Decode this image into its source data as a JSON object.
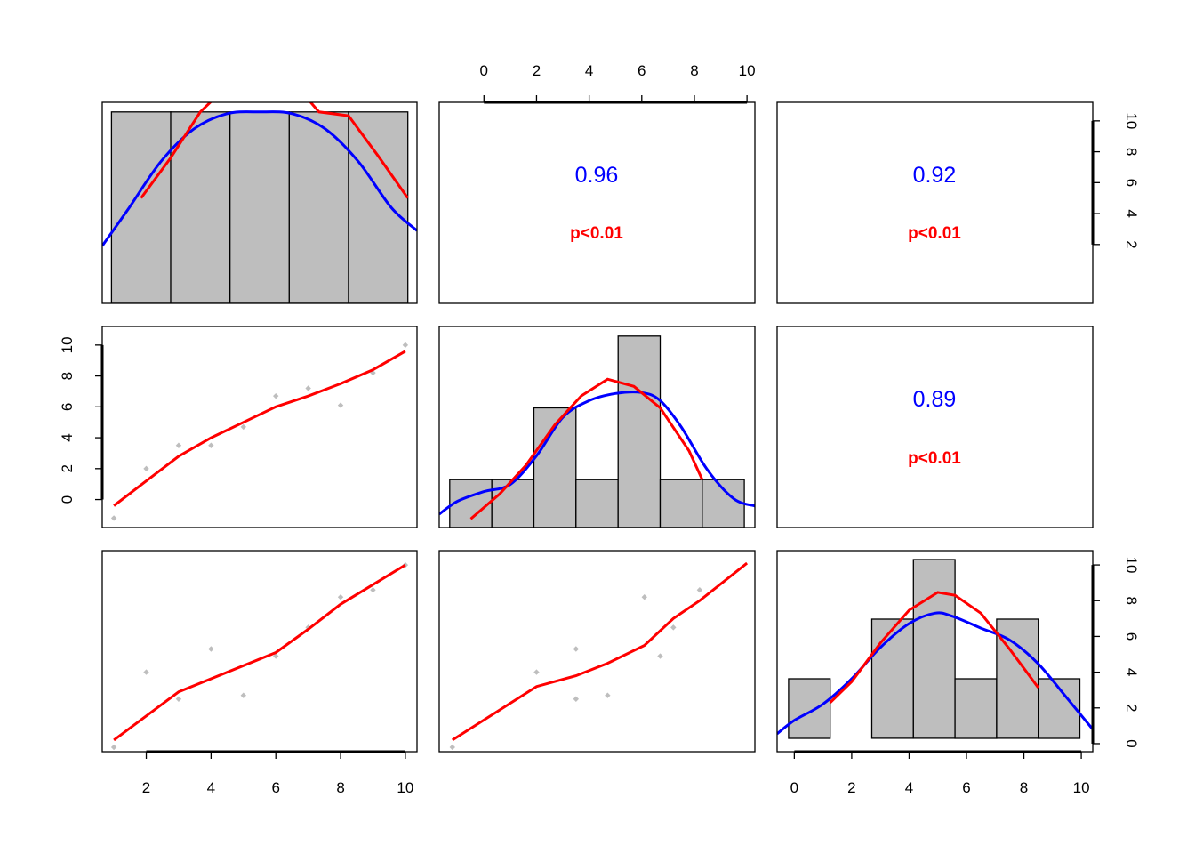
{
  "chart_data": {
    "type": "scatter-matrix",
    "title": "",
    "variables": 3,
    "colors": {
      "density": "#0000ff",
      "fit": "#ff0000",
      "points": "#bebebe",
      "bars": "#bebebe"
    },
    "diagonal": [
      {
        "type": "bar",
        "breaks": [
          1,
          2.8,
          4.6,
          6.4,
          8.2,
          10
        ],
        "counts": [
          1,
          1,
          1,
          1,
          1
        ],
        "xlim": [
          0.72,
          10.28
        ],
        "ylim": [
          0,
          1.05
        ],
        "density_x": [
          0.72,
          1.5,
          2.5,
          3.5,
          4.5,
          5.5,
          6.5,
          7.5,
          8.5,
          9.5,
          10.28
        ],
        "density_y": [
          0.3,
          0.49,
          0.74,
          0.91,
          0.99,
          1.0,
          0.99,
          0.91,
          0.74,
          0.5,
          0.38
        ],
        "fit_x": [
          1.9,
          2.8,
          3.7,
          4.6,
          5.5,
          6.4,
          7.3,
          8.2,
          9.1,
          10.0
        ],
        "fit_y": [
          0.55,
          0.76,
          1.0,
          1.15,
          1.23,
          1.18,
          1.0,
          0.98,
          0.77,
          0.55
        ]
      },
      {
        "type": "bar",
        "breaks": [
          -1.3,
          0.3,
          1.9,
          3.5,
          5.1,
          6.7,
          8.3,
          9.9
        ],
        "counts": [
          1,
          1,
          2.5,
          1,
          4,
          1,
          1
        ],
        "xlim": [
          -1.7,
          10.3
        ],
        "ylim": [
          0,
          4.2
        ],
        "density_x": [
          -1.7,
          -1.0,
          0.0,
          1.0,
          2.0,
          3.0,
          4.0,
          5.0,
          6.0,
          6.7,
          7.5,
          8.5,
          9.5,
          10.3
        ],
        "density_y": [
          0.28,
          0.55,
          0.75,
          0.9,
          1.5,
          2.3,
          2.65,
          2.8,
          2.82,
          2.65,
          2.1,
          1.2,
          0.6,
          0.45
        ],
        "fit_x": [
          -0.5,
          0.6,
          1.6,
          2.7,
          3.7,
          4.7,
          5.7,
          6.7,
          7.8,
          8.3
        ],
        "fit_y": [
          0.18,
          0.7,
          1.3,
          2.15,
          2.75,
          3.1,
          2.95,
          2.5,
          1.6,
          1.0
        ]
      },
      {
        "type": "bar",
        "breaks": [
          -0.2,
          1.25,
          2.7,
          4.15,
          5.6,
          7.05,
          8.5,
          9.95
        ],
        "counts": [
          2,
          0,
          4,
          6,
          2,
          4,
          2
        ],
        "xlim": [
          -0.6,
          10.4
        ],
        "ylim": [
          -0.45,
          6.3
        ],
        "density_x": [
          -0.6,
          0.0,
          1.0,
          2.0,
          3.0,
          4.0,
          4.9,
          5.5,
          6.5,
          7.5,
          8.5,
          9.5,
          10.4
        ],
        "density_y": [
          0.15,
          0.6,
          1.15,
          2.0,
          3.05,
          3.85,
          4.2,
          4.1,
          3.7,
          3.3,
          2.5,
          1.35,
          0.3
        ],
        "fit_x": [
          1.25,
          2.0,
          3.0,
          4.0,
          5.0,
          5.6,
          6.5,
          7.5,
          8.5
        ],
        "fit_y": [
          1.2,
          1.9,
          3.2,
          4.3,
          4.9,
          4.8,
          4.2,
          3.0,
          1.7
        ]
      }
    ],
    "correlations": [
      {
        "pair": [
          1,
          2
        ],
        "r": "0.96",
        "p": "p<0.01"
      },
      {
        "pair": [
          1,
          3
        ],
        "r": "0.92",
        "p": "p<0.01"
      },
      {
        "pair": [
          2,
          3
        ],
        "r": "0.89",
        "p": "p<0.01"
      }
    ],
    "scatter": [
      {
        "pair": [
          2,
          1
        ],
        "xlim": [
          0.64,
          10.36
        ],
        "ylim": [
          -1.81,
          11.2
        ],
        "points_x": [
          1,
          2,
          3,
          4,
          5,
          6,
          7,
          8,
          9,
          10
        ],
        "points_y": [
          -1.2,
          2.0,
          3.5,
          3.5,
          4.7,
          6.7,
          7.2,
          6.1,
          8.2,
          10.0
        ],
        "fit_x": [
          1,
          2,
          3,
          4,
          5,
          6,
          7,
          8,
          9,
          10
        ],
        "fit_y": [
          -0.4,
          1.2,
          2.8,
          4.0,
          5.0,
          6.0,
          6.7,
          7.5,
          8.4,
          9.6
        ]
      },
      {
        "pair": [
          3,
          1
        ],
        "xlim": [
          0.64,
          10.36
        ],
        "ylim": [
          -0.45,
          10.8
        ],
        "points_x": [
          1,
          2,
          3,
          4,
          5,
          6,
          7,
          8,
          9,
          10
        ],
        "points_y": [
          -0.2,
          4.0,
          2.5,
          5.3,
          2.7,
          4.9,
          6.5,
          8.2,
          8.6,
          10.0
        ],
        "fit_x": [
          1,
          3,
          6,
          7,
          8,
          9,
          10
        ],
        "fit_y": [
          0.2,
          2.9,
          5.1,
          6.4,
          7.8,
          8.9,
          10.0
        ]
      },
      {
        "pair": [
          3,
          2
        ],
        "xlim": [
          -1.7,
          10.3
        ],
        "ylim": [
          -0.45,
          10.8
        ],
        "points_x": [
          -1.2,
          2.0,
          3.5,
          3.5,
          4.7,
          6.7,
          7.2,
          6.1,
          8.2
        ],
        "points_y": [
          -0.2,
          4.0,
          2.5,
          5.3,
          2.7,
          4.9,
          6.5,
          8.2,
          8.6
        ],
        "fit_x": [
          -1.2,
          2.0,
          3.5,
          4.7,
          6.1,
          7.2,
          8.2,
          10.0
        ],
        "fit_y": [
          0.2,
          3.2,
          3.8,
          4.5,
          5.5,
          7.0,
          8.0,
          10.1
        ]
      }
    ],
    "axes": {
      "top": {
        "panel": [
          1,
          2
        ],
        "ticks": [
          0,
          2,
          4,
          6,
          8,
          10
        ],
        "labels": [
          "0",
          "2",
          "4",
          "6",
          "8",
          "10"
        ]
      },
      "right_row1": {
        "panel": [
          1,
          3
        ],
        "ticks": [
          2,
          4,
          6,
          8,
          10
        ],
        "labels": [
          "2",
          "4",
          "6",
          "8",
          "10"
        ]
      },
      "left_row2": {
        "panel": [
          2,
          1
        ],
        "ticks": [
          0,
          2,
          4,
          6,
          8,
          10
        ],
        "labels": [
          "0",
          "2",
          "4",
          "6",
          "8",
          "10"
        ]
      },
      "right_row3": {
        "panel": [
          3,
          3
        ],
        "ticks": [
          0,
          2,
          4,
          6,
          8,
          10
        ],
        "labels": [
          "0",
          "2",
          "4",
          "6",
          "8",
          "10"
        ]
      },
      "bottom_col1": {
        "panel": [
          3,
          1
        ],
        "ticks": [
          2,
          4,
          6,
          8,
          10
        ],
        "labels": [
          "2",
          "4",
          "6",
          "8",
          "10"
        ]
      },
      "bottom_col3": {
        "panel": [
          3,
          3
        ],
        "ticks": [
          0,
          2,
          4,
          6,
          8,
          10
        ],
        "labels": [
          "0",
          "2",
          "4",
          "6",
          "8",
          "10"
        ]
      }
    }
  }
}
